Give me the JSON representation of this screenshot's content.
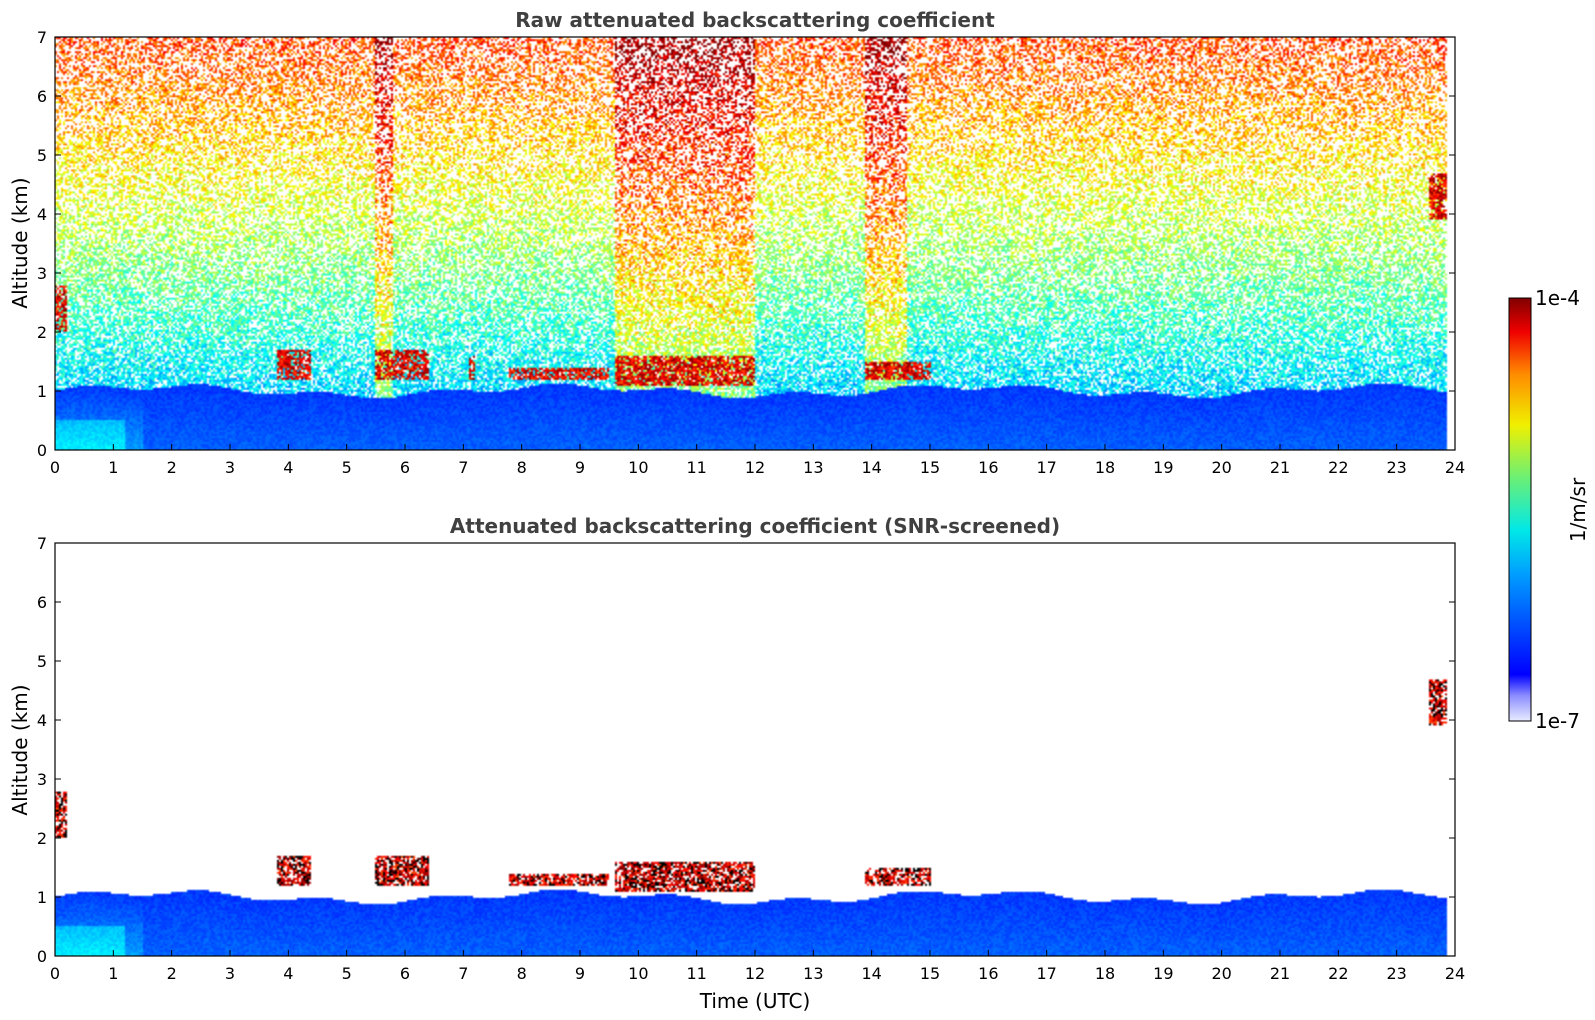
{
  "chart_data": [
    {
      "type": "heatmap",
      "title": "Raw attenuated backscattering coefficient",
      "xlabel": "",
      "ylabel": "Altitude (km)",
      "xlim": [
        0,
        24
      ],
      "ylim": [
        0,
        7
      ],
      "x_ticks": [
        "0",
        "1",
        "2",
        "3",
        "4",
        "5",
        "6",
        "7",
        "8",
        "9",
        "10",
        "11",
        "12",
        "13",
        "14",
        "15",
        "16",
        "17",
        "18",
        "19",
        "20",
        "21",
        "22",
        "23",
        "24"
      ],
      "y_ticks": [
        "0",
        "1",
        "2",
        "3",
        "4",
        "5",
        "6",
        "7"
      ],
      "data_end_hour": 23.85,
      "features": [
        {
          "name": "boundary layer",
          "x_range": [
            0,
            23.85
          ],
          "top_km": 1.0,
          "level": "low-mid"
        },
        {
          "name": "noisy background",
          "x_range": [
            0,
            23.85
          ],
          "y_range": [
            1.0,
            7.0
          ],
          "level": "noise increasing with altitude"
        },
        {
          "name": "cloud",
          "x_range": [
            3.8,
            4.4
          ],
          "y_range": [
            1.2,
            1.7
          ],
          "level": "high"
        },
        {
          "name": "cloud",
          "x_range": [
            5.5,
            6.4
          ],
          "y_range": [
            1.2,
            1.7
          ],
          "level": "high"
        },
        {
          "name": "cloud",
          "x_range": [
            7.1,
            7.2
          ],
          "y_range": [
            1.2,
            1.6
          ],
          "level": "high"
        },
        {
          "name": "cloud",
          "x_range": [
            7.8,
            9.5
          ],
          "y_range": [
            1.2,
            1.4
          ],
          "level": "high"
        },
        {
          "name": "cloud",
          "x_range": [
            9.6,
            12.0
          ],
          "y_range": [
            1.1,
            1.6
          ],
          "level": "high"
        },
        {
          "name": "cloud",
          "x_range": [
            13.9,
            15.0
          ],
          "y_range": [
            1.2,
            1.5
          ],
          "level": "high"
        },
        {
          "name": "cloud",
          "x_range": [
            0.0,
            0.2
          ],
          "y_range": [
            2.0,
            2.8
          ],
          "level": "high"
        },
        {
          "name": "cloud",
          "x_range": [
            23.55,
            23.85
          ],
          "y_range": [
            3.9,
            4.7
          ],
          "level": "high"
        }
      ]
    },
    {
      "type": "heatmap",
      "title": "Attenuated backscattering coefficient (SNR-screened)",
      "xlabel": "Time (UTC)",
      "ylabel": "Altitude (km)",
      "xlim": [
        0,
        24
      ],
      "ylim": [
        0,
        7
      ],
      "x_ticks": [
        "0",
        "1",
        "2",
        "3",
        "4",
        "5",
        "6",
        "7",
        "8",
        "9",
        "10",
        "11",
        "12",
        "13",
        "14",
        "15",
        "16",
        "17",
        "18",
        "19",
        "20",
        "21",
        "22",
        "23",
        "24"
      ],
      "y_ticks": [
        "0",
        "1",
        "2",
        "3",
        "4",
        "5",
        "6",
        "7"
      ],
      "data_end_hour": 23.85,
      "features": [
        {
          "name": "boundary layer",
          "x_range": [
            0,
            23.85
          ],
          "top_km": 1.0,
          "level": "low-mid"
        },
        {
          "name": "cloud",
          "x_range": [
            3.8,
            4.4
          ],
          "y_range": [
            1.2,
            1.7
          ],
          "level": "high"
        },
        {
          "name": "cloud",
          "x_range": [
            5.5,
            6.4
          ],
          "y_range": [
            1.2,
            1.7
          ],
          "level": "high"
        },
        {
          "name": "cloud",
          "x_range": [
            7.8,
            9.5
          ],
          "y_range": [
            1.2,
            1.4
          ],
          "level": "high"
        },
        {
          "name": "cloud",
          "x_range": [
            9.6,
            12.0
          ],
          "y_range": [
            1.1,
            1.6
          ],
          "level": "high"
        },
        {
          "name": "cloud",
          "x_range": [
            13.9,
            15.0
          ],
          "y_range": [
            1.2,
            1.5
          ],
          "level": "high"
        },
        {
          "name": "cloud",
          "x_range": [
            0.0,
            0.2
          ],
          "y_range": [
            2.0,
            2.8
          ],
          "level": "high"
        },
        {
          "name": "cloud",
          "x_range": [
            23.55,
            23.85
          ],
          "y_range": [
            3.9,
            4.7
          ],
          "level": "high"
        }
      ]
    }
  ],
  "colorbar": {
    "label": "1/m/sr",
    "max_label": "1e-4",
    "min_label": "1e-7",
    "colormap": "jet",
    "scale": "log"
  },
  "colors": {
    "title": "#404040",
    "axes": "#000000"
  }
}
